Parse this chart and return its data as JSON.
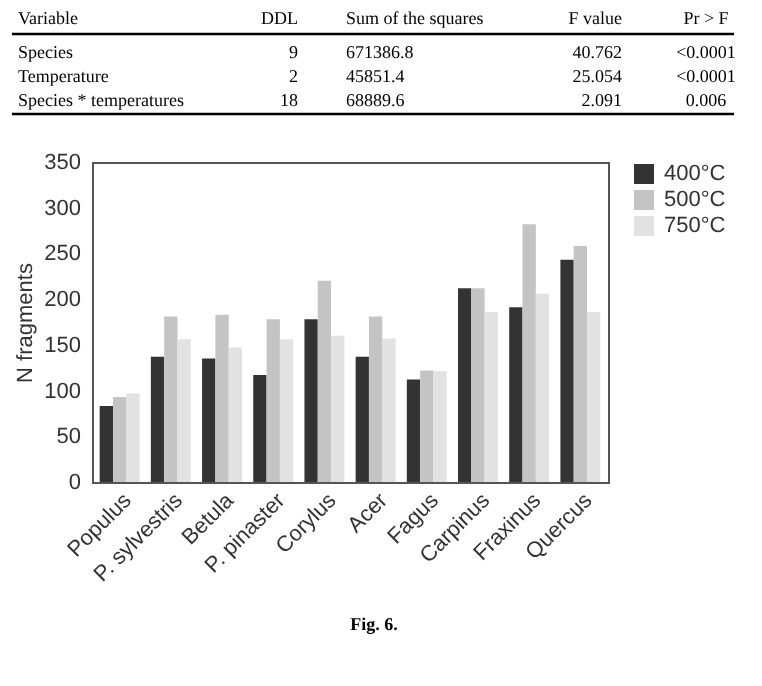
{
  "chart_data": {
    "type": "bar",
    "categories": [
      "Populus",
      "P. sylvestris",
      "Betula",
      "P. pinaster",
      "Corylus",
      "Acer",
      "Fagus",
      "Carpinus",
      "Fraxinus",
      "Quercus"
    ],
    "series": [
      {
        "name": "400°C",
        "color": "#333333",
        "values": [
          83,
          137,
          135,
          117,
          178,
          137,
          112,
          212,
          191,
          243
        ]
      },
      {
        "name": "500°C",
        "color": "#c4c4c4",
        "values": [
          93,
          181,
          183,
          178,
          220,
          181,
          122,
          212,
          282,
          258
        ]
      },
      {
        "name": "750°C",
        "color": "#e2e2e2",
        "values": [
          97,
          156,
          147,
          156,
          160,
          157,
          121,
          186,
          206,
          186
        ]
      }
    ],
    "ylabel": "N fragments",
    "ylim": [
      0,
      350
    ],
    "yticks": [
      0,
      50,
      100,
      150,
      200,
      250,
      300,
      350
    ],
    "legend": "right",
    "annotations": [
      "Variable",
      "DDL",
      "Sum of the squares",
      "F value",
      "Pr > F",
      "Species",
      "9",
      "671386.8",
      "40.762",
      "<0.0001",
      "Temperature",
      "2",
      "45851.4",
      "25.054",
      "<0.0001",
      "Species * temperatures",
      "18",
      "68889.6",
      "2.091",
      "0.006",
      "Fig. 6."
    ]
  }
}
